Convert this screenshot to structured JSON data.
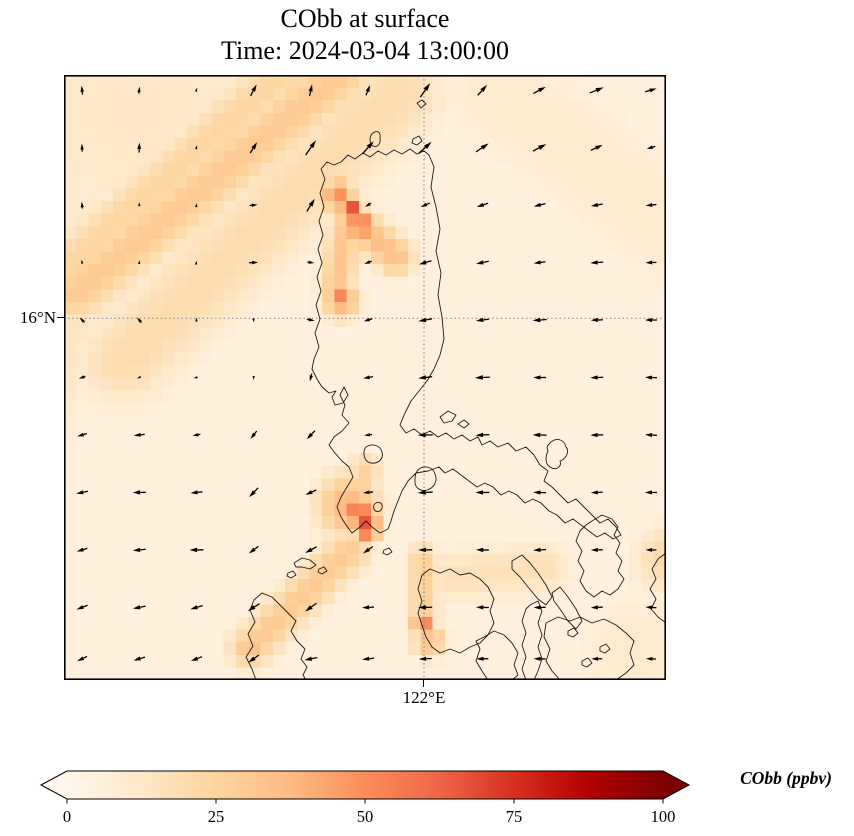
{
  "figure": {
    "title": "CObb at surface",
    "subtitle": "Time: 2024-03-04 13:00:00"
  },
  "axes": {
    "lat_tick": "16°N",
    "lon_tick": "122°E"
  },
  "colorbar": {
    "label": "CObb (ppbv)",
    "ticks": [
      "0",
      "25",
      "50",
      "75",
      "100"
    ],
    "min": 0,
    "max": 100,
    "extend": "both",
    "colormap": "OrRd",
    "stops": [
      [
        0,
        "#fff7ec"
      ],
      [
        0.125,
        "#fee8c8"
      ],
      [
        0.25,
        "#fdd49e"
      ],
      [
        0.375,
        "#fdbb84"
      ],
      [
        0.5,
        "#fc8d59"
      ],
      [
        0.625,
        "#ef6548"
      ],
      [
        0.75,
        "#d7301f"
      ],
      [
        0.875,
        "#b30000"
      ],
      [
        1,
        "#7f0000"
      ]
    ]
  },
  "chart_data": {
    "type": "heatmap",
    "title": "CObb at surface",
    "time": "2024-03-04 13:00:00",
    "units": "ppbv",
    "value_range": [
      0,
      100
    ],
    "gridlines": {
      "lat": {
        "label": "16°N",
        "y_frac": 0.402
      },
      "lon": {
        "label": "122°E",
        "x_frac": 0.598
      }
    },
    "background_ppbv": 5,
    "features": [
      {
        "k": "blob",
        "x": 0.12,
        "y": 0.05,
        "r": 0.38,
        "v": 13
      },
      {
        "k": "streak",
        "x1": 0.458,
        "y1": 0.0,
        "x2": 0.02,
        "y2": 0.36,
        "r": 0.055,
        "v": 30
      },
      {
        "k": "streak",
        "x1": 0.553,
        "y1": 0.03,
        "x2": 0.1,
        "y2": 0.47,
        "r": 0.09,
        "v": 20
      },
      {
        "k": "streak",
        "x1": 0.384,
        "y1": -0.02,
        "x2": -0.01,
        "y2": 0.33,
        "r": 0.05,
        "v": 24
      },
      {
        "k": "streak",
        "x1": 0.02,
        "y1": 0.42,
        "x2": -0.06,
        "y2": 0.6,
        "r": 0.07,
        "v": 14
      },
      {
        "k": "blob",
        "x": 0.475,
        "y": 0.226,
        "r": 0.02,
        "v": 80
      },
      {
        "k": "blob",
        "x": 0.492,
        "y": 0.248,
        "r": 0.028,
        "v": 58
      },
      {
        "k": "blob",
        "x": 0.455,
        "y": 0.198,
        "r": 0.03,
        "v": 50
      },
      {
        "k": "streak",
        "x1": 0.48,
        "y1": 0.24,
        "x2": 0.55,
        "y2": 0.3,
        "r": 0.035,
        "v": 36
      },
      {
        "k": "blob",
        "x": 0.453,
        "y": 0.36,
        "r": 0.016,
        "v": 66
      },
      {
        "k": "blob",
        "x": 0.46,
        "y": 0.372,
        "r": 0.032,
        "v": 44
      },
      {
        "k": "streak",
        "x1": 0.467,
        "y1": 0.256,
        "x2": 0.453,
        "y2": 0.347,
        "r": 0.03,
        "v": 33
      },
      {
        "k": "blob",
        "x": 0.503,
        "y": 0.747,
        "r": 0.022,
        "v": 76
      },
      {
        "k": "blob",
        "x": 0.489,
        "y": 0.722,
        "r": 0.032,
        "v": 58
      },
      {
        "k": "blob",
        "x": 0.472,
        "y": 0.712,
        "r": 0.055,
        "v": 40
      },
      {
        "k": "streak",
        "x1": 0.475,
        "y1": 0.785,
        "x2": 0.309,
        "y2": 0.947,
        "r": 0.04,
        "v": 30
      },
      {
        "k": "blob",
        "x": 0.309,
        "y": 0.947,
        "r": 0.028,
        "v": 36
      },
      {
        "k": "streak",
        "x1": 0.5,
        "y1": 0.653,
        "x2": 0.488,
        "y2": 0.719,
        "r": 0.03,
        "v": 26
      },
      {
        "k": "blob",
        "x": 0.596,
        "y": 0.906,
        "r": 0.02,
        "v": 55
      },
      {
        "k": "streak",
        "x1": 0.596,
        "y1": 0.8,
        "x2": 0.596,
        "y2": 0.893,
        "r": 0.028,
        "v": 28
      },
      {
        "k": "blob",
        "x": 0.606,
        "y": 0.935,
        "r": 0.03,
        "v": 36
      },
      {
        "k": "streak",
        "x1": 0.64,
        "y1": 0.83,
        "x2": 0.8,
        "y2": 0.815,
        "r": 0.05,
        "v": 17
      },
      {
        "k": "blob",
        "x": 1.0,
        "y": 0.8,
        "r": 0.06,
        "v": 22
      },
      {
        "k": "streak",
        "x1": 0.72,
        "y1": 0.02,
        "x2": 1.02,
        "y2": 0.26,
        "r": 0.12,
        "v": 11
      },
      {
        "k": "blob",
        "x": 0.95,
        "y": 0.95,
        "r": 0.12,
        "v": 11
      }
    ],
    "wind": {
      "type": "quiver",
      "arrows": [
        [
          0.03,
          0.025,
          95,
          9
        ],
        [
          0.125,
          0.025,
          82,
          7
        ],
        [
          0.22,
          0.025,
          70,
          5
        ],
        [
          0.315,
          0.025,
          62,
          13
        ],
        [
          0.41,
          0.025,
          78,
          12
        ],
        [
          0.505,
          0.025,
          68,
          11
        ],
        [
          0.6,
          0.025,
          55,
          17
        ],
        [
          0.695,
          0.025,
          48,
          14
        ],
        [
          0.79,
          0.025,
          28,
          14
        ],
        [
          0.885,
          0.025,
          22,
          15
        ],
        [
          0.975,
          0.025,
          16,
          12
        ],
        [
          0.03,
          0.12,
          92,
          8
        ],
        [
          0.125,
          0.12,
          88,
          10
        ],
        [
          0.22,
          0.12,
          76,
          5
        ],
        [
          0.315,
          0.12,
          58,
          13
        ],
        [
          0.41,
          0.12,
          55,
          18
        ],
        [
          0.505,
          0.12,
          48,
          17
        ],
        [
          0.6,
          0.12,
          42,
          17
        ],
        [
          0.695,
          0.12,
          34,
          15
        ],
        [
          0.79,
          0.12,
          28,
          15
        ],
        [
          0.885,
          0.12,
          24,
          13
        ],
        [
          0.975,
          0.12,
          196,
          9
        ],
        [
          0.03,
          0.215,
          96,
          7
        ],
        [
          0.125,
          0.215,
          90,
          6
        ],
        [
          0.22,
          0.215,
          82,
          4
        ],
        [
          0.315,
          0.215,
          6,
          8
        ],
        [
          0.41,
          0.215,
          58,
          15
        ],
        [
          0.505,
          0.215,
          212,
          7
        ],
        [
          0.6,
          0.215,
          204,
          10
        ],
        [
          0.695,
          0.215,
          198,
          12
        ],
        [
          0.79,
          0.215,
          194,
          12
        ],
        [
          0.885,
          0.215,
          190,
          12
        ],
        [
          0.975,
          0.215,
          186,
          11
        ],
        [
          0.03,
          0.31,
          100,
          6
        ],
        [
          0.125,
          0.31,
          86,
          5
        ],
        [
          0.22,
          0.31,
          76,
          4
        ],
        [
          0.315,
          0.31,
          2,
          9
        ],
        [
          0.41,
          0.31,
          352,
          7
        ],
        [
          0.505,
          0.31,
          200,
          8
        ],
        [
          0.6,
          0.31,
          196,
          13
        ],
        [
          0.695,
          0.31,
          192,
          13
        ],
        [
          0.79,
          0.31,
          188,
          12
        ],
        [
          0.885,
          0.31,
          184,
          13
        ],
        [
          0.975,
          0.31,
          182,
          11
        ],
        [
          0.03,
          0.405,
          135,
          7
        ],
        [
          0.125,
          0.405,
          130,
          7
        ],
        [
          0.22,
          0.405,
          88,
          5
        ],
        [
          0.315,
          0.405,
          282,
          5
        ],
        [
          0.41,
          0.405,
          350,
          8
        ],
        [
          0.505,
          0.405,
          196,
          9
        ],
        [
          0.6,
          0.405,
          190,
          14
        ],
        [
          0.695,
          0.405,
          187,
          13
        ],
        [
          0.79,
          0.405,
          184,
          14
        ],
        [
          0.885,
          0.405,
          182,
          12
        ],
        [
          0.975,
          0.405,
          180,
          12
        ],
        [
          0.03,
          0.5,
          198,
          7
        ],
        [
          0.125,
          0.5,
          208,
          5
        ],
        [
          0.22,
          0.5,
          194,
          6
        ],
        [
          0.315,
          0.5,
          264,
          5
        ],
        [
          0.41,
          0.5,
          256,
          8
        ],
        [
          0.505,
          0.5,
          190,
          10
        ],
        [
          0.6,
          0.5,
          186,
          14
        ],
        [
          0.695,
          0.5,
          183,
          15
        ],
        [
          0.79,
          0.5,
          180,
          13
        ],
        [
          0.885,
          0.5,
          182,
          13
        ],
        [
          0.975,
          0.5,
          178,
          12
        ],
        [
          0.03,
          0.595,
          196,
          10
        ],
        [
          0.125,
          0.595,
          186,
          11
        ],
        [
          0.22,
          0.595,
          190,
          8
        ],
        [
          0.315,
          0.595,
          232,
          10
        ],
        [
          0.41,
          0.595,
          226,
          12
        ],
        [
          0.505,
          0.595,
          186,
          8
        ],
        [
          0.6,
          0.595,
          181,
          15
        ],
        [
          0.695,
          0.595,
          183,
          14
        ],
        [
          0.79,
          0.595,
          179,
          14
        ],
        [
          0.885,
          0.595,
          181,
          13
        ],
        [
          0.975,
          0.595,
          177,
          12
        ],
        [
          0.03,
          0.69,
          192,
          12
        ],
        [
          0.125,
          0.69,
          181,
          13
        ],
        [
          0.22,
          0.69,
          186,
          12
        ],
        [
          0.315,
          0.69,
          226,
          13
        ],
        [
          0.41,
          0.69,
          204,
          12
        ],
        [
          0.505,
          0.69,
          186,
          10
        ],
        [
          0.6,
          0.69,
          183,
          15
        ],
        [
          0.695,
          0.69,
          180,
          14
        ],
        [
          0.79,
          0.69,
          178,
          13
        ],
        [
          0.885,
          0.69,
          183,
          12
        ],
        [
          0.975,
          0.69,
          180,
          12
        ],
        [
          0.03,
          0.785,
          196,
          11
        ],
        [
          0.125,
          0.785,
          186,
          13
        ],
        [
          0.22,
          0.785,
          181,
          14
        ],
        [
          0.315,
          0.785,
          217,
          12
        ],
        [
          0.41,
          0.785,
          208,
          13
        ],
        [
          0.505,
          0.785,
          215,
          12
        ],
        [
          0.6,
          0.785,
          181,
          14
        ],
        [
          0.695,
          0.785,
          179,
          13
        ],
        [
          0.79,
          0.785,
          183,
          13
        ],
        [
          0.885,
          0.785,
          181,
          12
        ],
        [
          0.975,
          0.785,
          179,
          11
        ],
        [
          0.03,
          0.88,
          201,
          12
        ],
        [
          0.125,
          0.88,
          191,
          13
        ],
        [
          0.22,
          0.88,
          196,
          13
        ],
        [
          0.315,
          0.88,
          212,
          14
        ],
        [
          0.41,
          0.88,
          216,
          14
        ],
        [
          0.505,
          0.88,
          183,
          12
        ],
        [
          0.6,
          0.88,
          181,
          14
        ],
        [
          0.695,
          0.88,
          179,
          13
        ],
        [
          0.79,
          0.88,
          181,
          12
        ],
        [
          0.885,
          0.88,
          183,
          12
        ],
        [
          0.975,
          0.88,
          177,
          11
        ],
        [
          0.03,
          0.965,
          206,
          11
        ],
        [
          0.125,
          0.965,
          196,
          12
        ],
        [
          0.22,
          0.965,
          201,
          12
        ],
        [
          0.315,
          0.965,
          216,
          13
        ],
        [
          0.41,
          0.965,
          191,
          13
        ],
        [
          0.505,
          0.965,
          186,
          12
        ],
        [
          0.6,
          0.965,
          183,
          13
        ],
        [
          0.695,
          0.965,
          181,
          12
        ],
        [
          0.79,
          0.965,
          179,
          12
        ],
        [
          0.885,
          0.965,
          181,
          11
        ],
        [
          0.975,
          0.965,
          177,
          10
        ]
      ]
    }
  }
}
